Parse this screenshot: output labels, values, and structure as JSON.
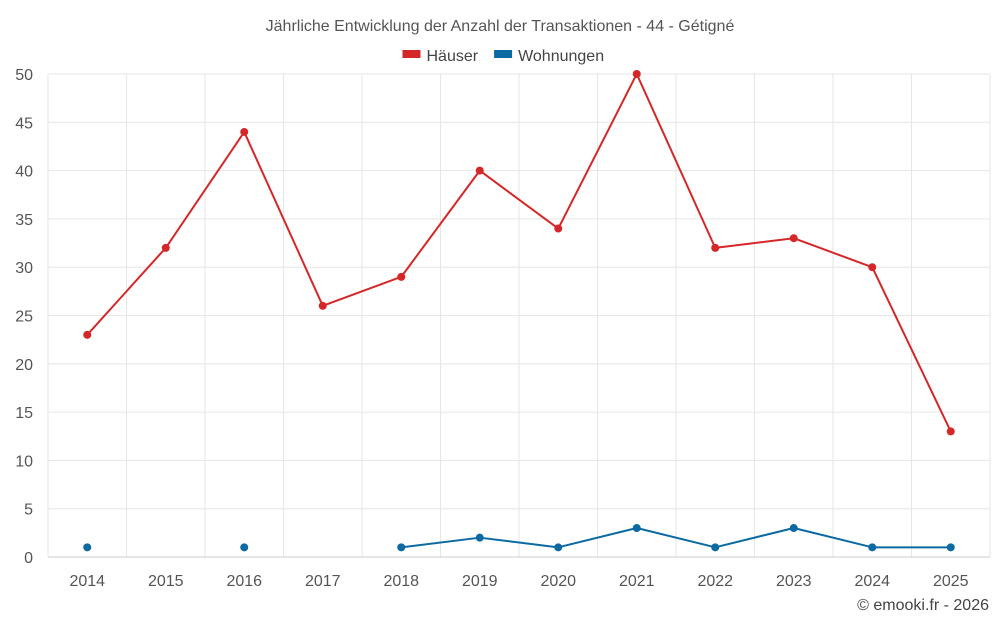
{
  "chart_data": {
    "type": "line",
    "title": "Jährliche Entwicklung der Anzahl der Transaktionen - 44 - Gétigné",
    "categories": [
      "2014",
      "2015",
      "2016",
      "2017",
      "2018",
      "2019",
      "2020",
      "2021",
      "2022",
      "2023",
      "2024",
      "2025"
    ],
    "series": [
      {
        "name": "Häuser",
        "color": "#d62728",
        "values": [
          23,
          32,
          44,
          26,
          29,
          40,
          34,
          50,
          32,
          33,
          30,
          13
        ]
      },
      {
        "name": "Wohnungen",
        "color": "#0a6aa1",
        "values": [
          1,
          null,
          1,
          null,
          1,
          2,
          1,
          3,
          1,
          3,
          1,
          1
        ]
      }
    ],
    "ylim": [
      0,
      50
    ],
    "yticks": [
      0,
      5,
      10,
      15,
      20,
      25,
      30,
      35,
      40,
      45,
      50
    ],
    "grid": true,
    "legend_position": "top-center"
  },
  "credit": "© emooki.fr - 2026"
}
